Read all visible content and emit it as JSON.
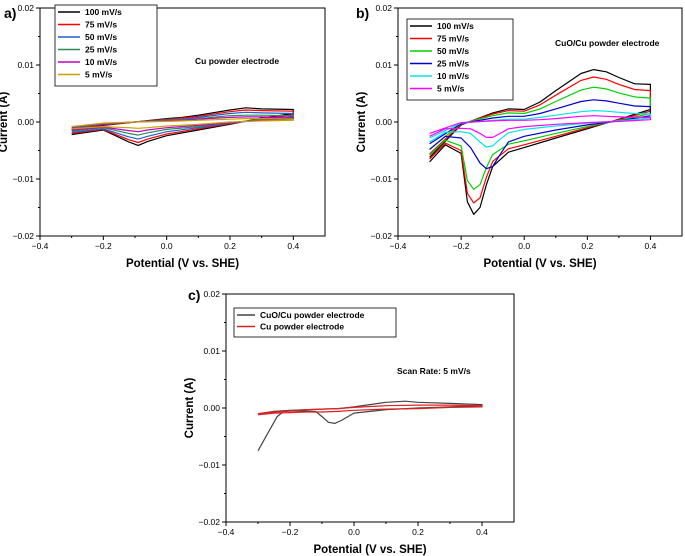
{
  "chart_data": [
    {
      "id": "a",
      "type": "line",
      "panel_label": "a)",
      "annotation": "Cu powder electrode",
      "xlabel": "Potential (V vs. SHE)",
      "ylabel": "Current (A)",
      "xlim": [
        -0.4,
        0.5
      ],
      "ylim": [
        -0.02,
        0.02
      ],
      "xticks": [
        -0.4,
        -0.2,
        0.0,
        0.2,
        0.4
      ],
      "xtick_labels": [
        "−0.4",
        "−0.2",
        "0.0",
        "0.2",
        "0.4"
      ],
      "yticks": [
        -0.02,
        -0.01,
        0.0,
        0.01,
        0.02
      ],
      "ytick_labels": [
        "−0.02",
        "−0.01",
        "0.00",
        "0.01",
        "0.02"
      ],
      "legend_position": "top-left",
      "series": [
        {
          "name": "100 mV/s",
          "color": "#000000",
          "x": [
            -0.3,
            -0.2,
            -0.12,
            -0.09,
            -0.06,
            0.0,
            0.1,
            0.2,
            0.3,
            0.4,
            0.4,
            0.3,
            0.25,
            0.2,
            0.1,
            0.05,
            0.0,
            -0.1,
            -0.2,
            -0.3
          ],
          "y": [
            -0.0022,
            -0.0014,
            -0.0035,
            -0.0041,
            -0.0034,
            -0.0024,
            -0.0014,
            -0.0004,
            0.0007,
            0.0015,
            0.0022,
            0.0023,
            0.0025,
            0.0021,
            0.0012,
            0.0008,
            0.0006,
            0.0,
            -0.0006,
            -0.0013
          ]
        },
        {
          "name": "75 mV/s",
          "color": "#ff0000",
          "x": [
            -0.3,
            -0.2,
            -0.12,
            -0.09,
            -0.06,
            0.0,
            0.1,
            0.2,
            0.3,
            0.4,
            0.4,
            0.3,
            0.25,
            0.2,
            0.1,
            0.05,
            0.0,
            -0.1,
            -0.2,
            -0.3
          ],
          "y": [
            -0.002,
            -0.0013,
            -0.0031,
            -0.0036,
            -0.003,
            -0.0021,
            -0.0012,
            -0.0003,
            0.0006,
            0.0013,
            0.0019,
            0.002,
            0.0021,
            0.0018,
            0.001,
            0.0007,
            0.0005,
            0.0,
            -0.0005,
            -0.0012
          ]
        },
        {
          "name": "50 mV/s",
          "color": "#1f5fd0",
          "x": [
            -0.3,
            -0.2,
            -0.12,
            -0.09,
            -0.06,
            0.0,
            0.1,
            0.2,
            0.3,
            0.4,
            0.4,
            0.3,
            0.25,
            0.2,
            0.1,
            0.05,
            0.0,
            -0.1,
            -0.2,
            -0.3
          ],
          "y": [
            -0.0018,
            -0.0012,
            -0.0026,
            -0.003,
            -0.0025,
            -0.0017,
            -0.001,
            -0.0002,
            0.0005,
            0.001,
            0.0015,
            0.0016,
            0.0017,
            0.0015,
            0.0008,
            0.0005,
            0.0004,
            0.0,
            -0.0004,
            -0.0011
          ]
        },
        {
          "name": "25 mV/s",
          "color": "#2e8b57",
          "x": [
            -0.3,
            -0.2,
            -0.12,
            -0.09,
            -0.06,
            0.0,
            0.1,
            0.2,
            0.3,
            0.4,
            0.4,
            0.3,
            0.25,
            0.2,
            0.1,
            0.05,
            0.0,
            -0.1,
            -0.2,
            -0.3
          ],
          "y": [
            -0.0016,
            -0.001,
            -0.002,
            -0.0023,
            -0.0019,
            -0.0013,
            -0.0008,
            -0.0001,
            0.0004,
            0.0007,
            0.0011,
            0.0012,
            0.0012,
            0.0011,
            0.0006,
            0.0004,
            0.0003,
            0.0,
            -0.0003,
            -0.001
          ]
        },
        {
          "name": "10 mV/s",
          "color": "#c000c0",
          "x": [
            -0.3,
            -0.2,
            -0.12,
            -0.09,
            -0.06,
            0.0,
            0.1,
            0.2,
            0.3,
            0.4,
            0.4,
            0.3,
            0.25,
            0.2,
            0.1,
            0.05,
            0.0,
            -0.1,
            -0.2,
            -0.3
          ],
          "y": [
            -0.0014,
            -0.0009,
            -0.0015,
            -0.0017,
            -0.0014,
            -0.001,
            -0.0006,
            -0.0001,
            0.0003,
            0.0005,
            0.0008,
            0.0009,
            0.0009,
            0.0008,
            0.0005,
            0.0003,
            0.0002,
            0.0,
            -0.0003,
            -0.0009
          ]
        },
        {
          "name": "5 mV/s",
          "color": "#c8a000",
          "x": [
            -0.3,
            -0.2,
            -0.12,
            -0.09,
            -0.06,
            0.0,
            0.1,
            0.2,
            0.3,
            0.4,
            0.4,
            0.3,
            0.25,
            0.2,
            0.1,
            0.05,
            0.0,
            -0.1,
            -0.2,
            -0.3
          ],
          "y": [
            -0.0012,
            -0.0008,
            -0.001,
            -0.0011,
            -0.001,
            -0.0007,
            -0.0004,
            0.0,
            0.0002,
            0.0003,
            0.0005,
            0.0006,
            0.0006,
            0.0005,
            0.0003,
            0.0002,
            0.0001,
            0.0,
            -0.0002,
            -0.0008
          ]
        }
      ]
    },
    {
      "id": "b",
      "type": "line",
      "panel_label": "b)",
      "annotation": "CuO/Cu powder electrode",
      "xlabel": "Potential (V vs. SHE)",
      "ylabel": "Current (A)",
      "xlim": [
        -0.4,
        0.5
      ],
      "ylim": [
        -0.02,
        0.02
      ],
      "xticks": [
        -0.4,
        -0.2,
        0.0,
        0.2,
        0.4
      ],
      "xtick_labels": [
        "−0.4",
        "−0.2",
        "0.0",
        "0.2",
        "0.4"
      ],
      "yticks": [
        -0.02,
        -0.01,
        0.0,
        0.01,
        0.02
      ],
      "ytick_labels": [
        "−0.02",
        "−0.01",
        "0.00",
        "0.01",
        "0.02"
      ],
      "legend_position": "top-left",
      "series": [
        {
          "name": "100 mV/s",
          "color": "#000000",
          "x": [
            -0.3,
            -0.25,
            -0.2,
            -0.18,
            -0.16,
            -0.14,
            -0.12,
            -0.1,
            -0.05,
            0.0,
            0.1,
            0.2,
            0.3,
            0.4,
            0.4,
            0.35,
            0.3,
            0.26,
            0.22,
            0.18,
            0.1,
            0.05,
            0.0,
            -0.05,
            -0.1,
            -0.2,
            -0.3
          ],
          "y": [
            -0.007,
            -0.004,
            -0.0055,
            -0.014,
            -0.0162,
            -0.015,
            -0.011,
            -0.0078,
            -0.0053,
            -0.0045,
            -0.0028,
            -0.0012,
            0.0005,
            0.0022,
            0.0066,
            0.0067,
            0.0078,
            0.0088,
            0.0092,
            0.0085,
            0.0055,
            0.0035,
            0.0022,
            0.0023,
            0.0016,
            -0.0005,
            -0.0062
          ]
        },
        {
          "name": "75 mV/s",
          "color": "#ff0000",
          "x": [
            -0.3,
            -0.25,
            -0.2,
            -0.18,
            -0.16,
            -0.14,
            -0.12,
            -0.1,
            -0.05,
            0.0,
            0.1,
            0.2,
            0.3,
            0.4,
            0.4,
            0.35,
            0.3,
            0.26,
            0.22,
            0.18,
            0.1,
            0.05,
            0.0,
            -0.05,
            -0.1,
            -0.2,
            -0.3
          ],
          "y": [
            -0.0065,
            -0.0037,
            -0.005,
            -0.0125,
            -0.0142,
            -0.0133,
            -0.0097,
            -0.0069,
            -0.0047,
            -0.004,
            -0.0025,
            -0.001,
            0.0004,
            0.0019,
            0.0055,
            0.0057,
            0.0066,
            0.0075,
            0.0079,
            0.0073,
            0.0047,
            0.003,
            0.0019,
            0.002,
            0.0014,
            -0.0004,
            -0.0056
          ]
        },
        {
          "name": "50 mV/s",
          "color": "#00d000",
          "x": [
            -0.3,
            -0.25,
            -0.2,
            -0.18,
            -0.16,
            -0.14,
            -0.12,
            -0.1,
            -0.05,
            0.0,
            0.1,
            0.2,
            0.3,
            0.4,
            0.4,
            0.35,
            0.3,
            0.26,
            0.22,
            0.18,
            0.1,
            0.05,
            0.0,
            -0.05,
            -0.1,
            -0.2,
            -0.3
          ],
          "y": [
            -0.0058,
            -0.0032,
            -0.0042,
            -0.0103,
            -0.0118,
            -0.011,
            -0.008,
            -0.0057,
            -0.0039,
            -0.0033,
            -0.002,
            -0.0008,
            0.0003,
            0.0015,
            0.0042,
            0.0044,
            0.0051,
            0.0058,
            0.0061,
            0.0056,
            0.0036,
            0.0023,
            0.0015,
            0.0016,
            0.0011,
            -0.0003,
            -0.0048
          ]
        },
        {
          "name": "25 mV/s",
          "color": "#0000cc",
          "x": [
            -0.3,
            -0.25,
            -0.2,
            -0.17,
            -0.14,
            -0.12,
            -0.1,
            -0.08,
            -0.05,
            0.0,
            0.1,
            0.2,
            0.3,
            0.4,
            0.4,
            0.35,
            0.3,
            0.26,
            0.22,
            0.18,
            0.1,
            0.05,
            0.0,
            -0.05,
            -0.1,
            -0.2,
            -0.3
          ],
          "y": [
            -0.0048,
            -0.0025,
            -0.0028,
            -0.0045,
            -0.0072,
            -0.0082,
            -0.0078,
            -0.006,
            -0.0035,
            -0.0025,
            -0.0014,
            -0.0005,
            0.0002,
            0.0011,
            0.0027,
            0.0028,
            0.0033,
            0.0037,
            0.0039,
            0.0036,
            0.0023,
            0.0015,
            0.001,
            0.001,
            0.0007,
            -0.0003,
            -0.0038
          ]
        },
        {
          "name": "10 mV/s",
          "color": "#00e5e5",
          "x": [
            -0.3,
            -0.25,
            -0.2,
            -0.17,
            -0.14,
            -0.12,
            -0.1,
            -0.08,
            -0.05,
            0.0,
            0.1,
            0.2,
            0.3,
            0.4,
            0.4,
            0.35,
            0.3,
            0.26,
            0.22,
            0.18,
            0.1,
            0.05,
            0.0,
            -0.05,
            -0.1,
            -0.2,
            -0.3
          ],
          "y": [
            -0.0035,
            -0.0018,
            -0.0017,
            -0.002,
            -0.0035,
            -0.0044,
            -0.0042,
            -0.0032,
            -0.0019,
            -0.0013,
            -0.0007,
            -0.0002,
            0.0002,
            0.0007,
            0.0014,
            0.0015,
            0.0017,
            0.0019,
            0.002,
            0.0018,
            0.0012,
            0.0008,
            0.0005,
            0.0005,
            0.0003,
            -0.0002,
            -0.0028
          ]
        },
        {
          "name": "5 mV/s",
          "color": "#ff00ff",
          "x": [
            -0.3,
            -0.25,
            -0.2,
            -0.17,
            -0.14,
            -0.12,
            -0.1,
            -0.08,
            -0.05,
            0.0,
            0.1,
            0.2,
            0.3,
            0.4,
            0.4,
            0.35,
            0.3,
            0.26,
            0.22,
            0.18,
            0.1,
            0.05,
            0.0,
            -0.05,
            -0.1,
            -0.2,
            -0.3
          ],
          "y": [
            -0.0025,
            -0.0012,
            -0.0011,
            -0.0012,
            -0.002,
            -0.0027,
            -0.0027,
            -0.0021,
            -0.0012,
            -0.0008,
            -0.0004,
            -0.0001,
            0.0001,
            0.0004,
            0.0008,
            0.0008,
            0.0009,
            0.001,
            0.0011,
            0.001,
            0.0006,
            0.0004,
            0.0003,
            0.0003,
            0.0002,
            -0.0001,
            -0.002
          ]
        }
      ]
    },
    {
      "id": "c",
      "type": "line",
      "panel_label": "c)",
      "annotation": "Scan Rate: 5 mV/s",
      "xlabel": "Potential (V vs. SHE)",
      "ylabel": "Current (A)",
      "xlim": [
        -0.4,
        0.5
      ],
      "ylim": [
        -0.02,
        0.02
      ],
      "xticks": [
        -0.4,
        -0.2,
        0.0,
        0.2,
        0.4
      ],
      "xtick_labels": [
        "−0.4",
        "−0.2",
        "0.0",
        "0.2",
        "0.4"
      ],
      "yticks": [
        -0.02,
        -0.01,
        0.0,
        0.01,
        0.02
      ],
      "ytick_labels": [
        "−0.02",
        "−0.01",
        "0.00",
        "0.01",
        "0.02"
      ],
      "legend_position": "top-left",
      "series": [
        {
          "name": "CuO/Cu powder electrode",
          "color": "#444444",
          "x": [
            -0.3,
            -0.27,
            -0.24,
            -0.22,
            -0.18,
            -0.12,
            -0.1,
            -0.08,
            -0.06,
            -0.04,
            0.0,
            0.1,
            0.2,
            0.3,
            0.4,
            0.4,
            0.3,
            0.2,
            0.16,
            0.1,
            0.0,
            -0.05,
            -0.1,
            -0.15,
            -0.2,
            -0.25,
            -0.3
          ],
          "y": [
            -0.0075,
            -0.0045,
            -0.0015,
            -0.0006,
            -0.0005,
            -0.0006,
            -0.0015,
            -0.0025,
            -0.0027,
            -0.0022,
            -0.0009,
            -0.0003,
            0.0,
            0.0002,
            0.0004,
            0.0006,
            0.0008,
            0.001,
            0.0012,
            0.001,
            0.0002,
            -0.0001,
            -0.0002,
            -0.0003,
            -0.0004,
            -0.0006,
            -0.001
          ]
        },
        {
          "name": "Cu powder electrode",
          "color": "#e02020",
          "x": [
            -0.3,
            -0.25,
            -0.2,
            -0.15,
            -0.1,
            -0.05,
            0.0,
            0.1,
            0.2,
            0.3,
            0.4,
            0.4,
            0.3,
            0.2,
            0.1,
            0.0,
            -0.05,
            -0.1,
            -0.15,
            -0.2,
            -0.25,
            -0.3
          ],
          "y": [
            -0.0012,
            -0.0009,
            -0.0008,
            -0.0007,
            -0.0007,
            -0.0006,
            -0.0004,
            -0.0002,
            -0.0001,
            0.0001,
            0.0002,
            0.0004,
            0.0005,
            0.0005,
            0.0004,
            0.0001,
            -0.0001,
            -0.0002,
            -0.0003,
            -0.0005,
            -0.0007,
            -0.001
          ]
        }
      ]
    }
  ]
}
